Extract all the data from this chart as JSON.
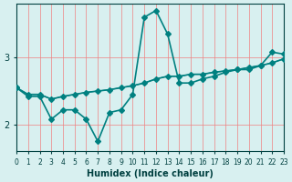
{
  "xlabel": "Humidex (Indice chaleur)",
  "ylabel": "",
  "background_color": "#d8f0f0",
  "grid_color": "#f08080",
  "line_color": "#008080",
  "xlim": [
    0,
    23
  ],
  "ylim": [
    1.6,
    3.8
  ],
  "yticks": [
    2,
    3
  ],
  "xticks": [
    0,
    1,
    2,
    3,
    4,
    5,
    6,
    7,
    8,
    9,
    10,
    11,
    12,
    13,
    14,
    15,
    16,
    17,
    18,
    19,
    20,
    21,
    22,
    23
  ],
  "series": [
    {
      "x": [
        0,
        1,
        2,
        3,
        4,
        5,
        6,
        7,
        8,
        9,
        10,
        11,
        12,
        13,
        14,
        15,
        16,
        17,
        18,
        19,
        20,
        21,
        22,
        23
      ],
      "y": [
        2.55,
        2.42,
        2.42,
        2.08,
        2.22,
        2.22,
        2.08,
        1.75,
        2.18,
        2.22,
        2.45,
        3.6,
        3.7,
        3.35,
        2.62,
        2.62,
        2.68,
        2.72,
        2.78,
        2.82,
        2.82,
        2.88,
        3.08,
        3.05
      ],
      "marker": "D",
      "markersize": 3,
      "linewidth": 1.2,
      "has_marker": true
    },
    {
      "x": [
        0,
        1,
        2,
        3,
        4,
        5,
        6,
        7,
        8,
        9,
        10,
        11,
        12,
        13,
        14,
        15,
        16,
        17,
        18,
        19,
        20,
        21,
        22,
        23
      ],
      "y": [
        2.55,
        2.45,
        2.45,
        2.38,
        2.42,
        2.45,
        2.48,
        2.5,
        2.52,
        2.55,
        2.58,
        2.62,
        2.68,
        2.72,
        2.72,
        2.75,
        2.75,
        2.78,
        2.8,
        2.82,
        2.85,
        2.88,
        2.92,
        2.98
      ],
      "marker": "D",
      "markersize": 3,
      "linewidth": 1.2,
      "has_marker": true
    },
    {
      "x": [
        0,
        1,
        2,
        3,
        4,
        5,
        6,
        7,
        8,
        9,
        10,
        11,
        12,
        13,
        14,
        15,
        16,
        17,
        18,
        19,
        20,
        21,
        22,
        23
      ],
      "y": [
        2.55,
        2.45,
        2.45,
        2.38,
        2.42,
        2.45,
        2.48,
        2.5,
        2.52,
        2.55,
        2.58,
        2.62,
        2.68,
        2.72,
        2.72,
        2.75,
        2.75,
        2.78,
        2.8,
        2.82,
        2.85,
        2.88,
        2.92,
        2.98
      ],
      "marker": null,
      "markersize": 0,
      "linewidth": 0.8,
      "has_marker": false
    }
  ]
}
